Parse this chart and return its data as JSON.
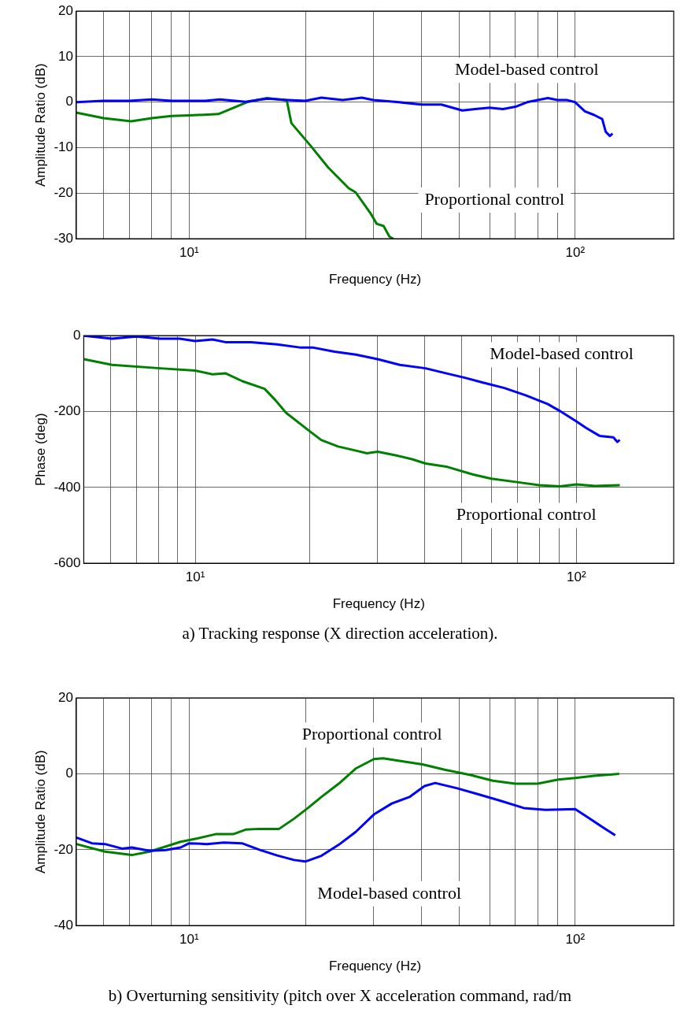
{
  "chart_data": [
    {
      "type": "line",
      "ylabel": "Amplitude Ratio (dB)",
      "xlabel": "Frequency (Hz)",
      "log": "x",
      "grid": true,
      "legend": false,
      "marker": "none",
      "line_style": "solid",
      "xlim": [
        5.1,
        180
      ],
      "xticks": [
        {
          "value": 6,
          "label": null
        },
        {
          "value": 7,
          "label": null
        },
        {
          "value": 8,
          "label": null
        },
        {
          "value": 9,
          "label": null
        },
        {
          "value": 10,
          "label": "10¹"
        },
        {
          "value": 20,
          "label": null
        },
        {
          "value": 30,
          "label": null
        },
        {
          "value": 40,
          "label": null
        },
        {
          "value": 50,
          "label": null
        },
        {
          "value": 60,
          "label": null
        },
        {
          "value": 70,
          "label": null
        },
        {
          "value": 80,
          "label": null
        },
        {
          "value": 90,
          "label": null
        },
        {
          "value": 100,
          "label": "10²"
        }
      ],
      "ylim": [
        -30,
        20
      ],
      "yticks": [
        -30,
        -20,
        -10,
        0,
        10,
        20
      ],
      "series": [
        {
          "name": "Model-based control",
          "color": "#0000ff",
          "x": [
            5.1,
            6,
            7,
            8,
            9,
            10,
            11,
            12,
            14,
            15,
            16,
            18,
            20,
            22,
            25,
            28,
            30,
            35,
            40,
            45,
            51,
            55,
            60,
            65,
            70,
            75,
            80,
            85,
            90,
            95,
            100,
            106,
            112,
            117.5,
            120,
            123,
            125
          ],
          "values": [
            0,
            0.3,
            0.3,
            0.6,
            0.3,
            0.3,
            0.3,
            0.6,
            0.1,
            0.5,
            0.8,
            0.5,
            0.3,
            1,
            0.5,
            1,
            0.5,
            0,
            -0.5,
            -0.5,
            -1.8,
            -1.5,
            -1.2,
            -1.5,
            -1,
            0,
            0.5,
            0.9,
            0.5,
            0.5,
            0,
            -2,
            -2.8,
            -3.7,
            -6.5,
            -7.4,
            -6.9
          ]
        },
        {
          "name": "Proportional control",
          "color": "#008000",
          "x": [
            5.1,
            6,
            7.07,
            8,
            9,
            10,
            11.9,
            14.1,
            15,
            15.9,
            17.9,
            18.4,
            20.7,
            22.9,
            25.9,
            27,
            29.5,
            30.6,
            31.9,
            33,
            33.8
          ],
          "values": [
            -2.3,
            -3.5,
            -4.2,
            -3.5,
            -3,
            -2.9,
            -2.6,
            0,
            0.5,
            0.9,
            0.4,
            -4.6,
            -9.7,
            -14.3,
            -18.9,
            -19.8,
            -24.4,
            -26.7,
            -27.2,
            -29.5,
            -30
          ]
        }
      ]
    },
    {
      "type": "line",
      "ylabel": "Phase (deg)",
      "xlabel": "Frequency (Hz)",
      "log": "x",
      "grid": true,
      "legend": false,
      "marker": "none",
      "line_style": "solid",
      "xlim": [
        5.1,
        180
      ],
      "xticks": [
        {
          "value": 6,
          "label": null
        },
        {
          "value": 7,
          "label": null
        },
        {
          "value": 8,
          "label": null
        },
        {
          "value": 9,
          "label": null
        },
        {
          "value": 10,
          "label": "10¹"
        },
        {
          "value": 20,
          "label": null
        },
        {
          "value": 30,
          "label": null
        },
        {
          "value": 40,
          "label": null
        },
        {
          "value": 50,
          "label": null
        },
        {
          "value": 60,
          "label": null
        },
        {
          "value": 70,
          "label": null
        },
        {
          "value": 80,
          "label": null
        },
        {
          "value": 90,
          "label": null
        },
        {
          "value": 100,
          "label": "10²"
        }
      ],
      "ylim": [
        -600,
        0
      ],
      "yticks": [
        -600,
        -400,
        -200,
        0
      ],
      "series": [
        {
          "name": "Model-based control",
          "color": "#0000ff",
          "x": [
            5.1,
            6.05,
            7,
            8.1,
            9.1,
            10,
            11.1,
            12,
            14,
            16.4,
            18.8,
            20.3,
            23.2,
            26.4,
            30.1,
            34.4,
            40.2,
            45.9,
            51,
            56.6,
            64.7,
            73.6,
            84,
            90,
            100,
            106,
            115,
            125,
            128,
            130
          ],
          "values": [
            0,
            -8,
            -2,
            -8,
            -8,
            -14,
            -10,
            -17,
            -17,
            -23,
            -31,
            -31,
            -42,
            -50,
            -62,
            -77,
            -86,
            -100,
            -111,
            -123,
            -138,
            -157,
            -180,
            -197,
            -226,
            -243,
            -264,
            -268,
            -280,
            -275
          ]
        },
        {
          "name": "Proportional control",
          "color": "#008000",
          "x": [
            5.1,
            6.05,
            8.1,
            10,
            11.1,
            12,
            13.3,
            15.2,
            16.2,
            17.3,
            19.8,
            21.4,
            23.7,
            26.4,
            28.2,
            30.1,
            33.5,
            37.2,
            40.2,
            45.9,
            53.6,
            59.8,
            69.9,
            79.9,
            90.5,
            100,
            112,
            130
          ],
          "values": [
            -62,
            -77,
            -86,
            -92,
            -102,
            -99,
            -120,
            -140,
            -169,
            -203,
            -249,
            -275,
            -292,
            -303,
            -310,
            -306,
            -315,
            -326,
            -337,
            -346,
            -366,
            -377,
            -386,
            -394,
            -397,
            -392,
            -396,
            -394
          ]
        }
      ],
      "annotations": [
        "a) Tracking response (X direction acceleration)."
      ]
    },
    {
      "type": "line",
      "ylabel": "Amplitude Ratio (dB)",
      "xlabel": "Frequency (Hz)",
      "log": "x",
      "grid": true,
      "legend": false,
      "marker": "none",
      "line_style": "solid",
      "xlim": [
        5.1,
        180
      ],
      "xticks": [
        {
          "value": 6,
          "label": null
        },
        {
          "value": 7,
          "label": null
        },
        {
          "value": 8,
          "label": null
        },
        {
          "value": 9,
          "label": null
        },
        {
          "value": 10,
          "label": "10¹"
        },
        {
          "value": 20,
          "label": null
        },
        {
          "value": 30,
          "label": null
        },
        {
          "value": 40,
          "label": null
        },
        {
          "value": 50,
          "label": null
        },
        {
          "value": 60,
          "label": null
        },
        {
          "value": 70,
          "label": null
        },
        {
          "value": 80,
          "label": null
        },
        {
          "value": 90,
          "label": null
        },
        {
          "value": 100,
          "label": "10²"
        }
      ],
      "ylim": [
        -40,
        20
      ],
      "yticks": [
        -40,
        -20,
        0,
        20
      ],
      "series": [
        {
          "name": "Model-based control",
          "color": "#0000ff",
          "x": [
            5.1,
            5.6,
            6.05,
            6.7,
            7.1,
            7.9,
            8.7,
            9.5,
            10,
            11.1,
            12.3,
            13.7,
            15.2,
            16.9,
            18.7,
            20,
            22,
            24.4,
            27,
            30.1,
            33.5,
            37.2,
            40.7,
            43.4,
            49.5,
            56.6,
            64.6,
            73.6,
            83.9,
            100,
            109,
            118,
            127
          ],
          "values": [
            -16.8,
            -18.3,
            -18.5,
            -19.7,
            -19.4,
            -20.3,
            -20.1,
            -19.4,
            -18.3,
            -18.5,
            -18.1,
            -18.3,
            -20,
            -21.5,
            -22.7,
            -23.1,
            -21.6,
            -18.7,
            -15.3,
            -10.7,
            -7.8,
            -6.1,
            -3.2,
            -2.4,
            -3.8,
            -5.5,
            -7.2,
            -9,
            -9.5,
            -9.3,
            -11.8,
            -14.1,
            -16.2
          ]
        },
        {
          "name": "Proportional control",
          "color": "#008000",
          "x": [
            5.1,
            6.05,
            7.1,
            7.9,
            9.5,
            10.5,
            11.7,
            13,
            14,
            15.2,
            17.1,
            18.7,
            20.3,
            22,
            24.4,
            27,
            30.1,
            31.8,
            35.3,
            40.2,
            45.9,
            53.6,
            61.2,
            69.9,
            79.9,
            90.5,
            100,
            112,
            130
          ],
          "values": [
            -18.5,
            -20.5,
            -21.4,
            -20.5,
            -17.9,
            -17,
            -15.9,
            -15.9,
            -14.7,
            -14.5,
            -14.5,
            -11.8,
            -9,
            -6.1,
            -2.6,
            1.4,
            3.9,
            4.1,
            3.4,
            2.5,
            1.1,
            -0.3,
            -1.8,
            -2.6,
            -2.6,
            -1.5,
            -1.1,
            -0.5,
            0
          ]
        }
      ],
      "annotations": [
        "b) Overturning sensitivity (pitch over X acceleration command, rad/m"
      ]
    }
  ]
}
